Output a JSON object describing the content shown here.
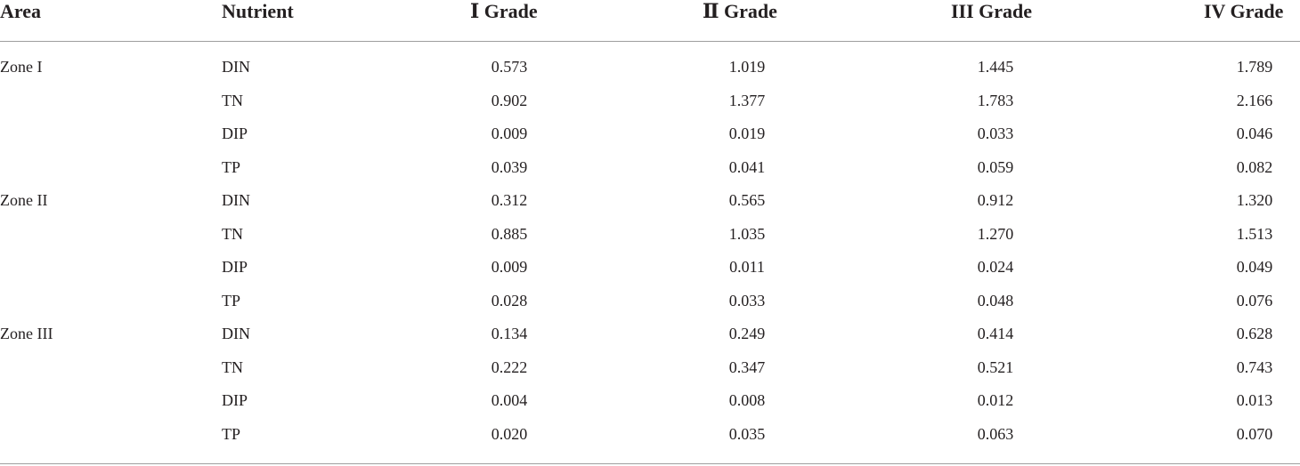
{
  "table": {
    "headers": [
      "Area",
      "Nutrient",
      "Ⅰ Grade",
      "Ⅱ Grade",
      "III Grade",
      "IV Grade"
    ],
    "rows": [
      {
        "area": "Zone I",
        "nutrient": "DIN",
        "g1": "0.573",
        "g2": "1.019",
        "g3": "1.445",
        "g4": "1.789"
      },
      {
        "area": "",
        "nutrient": "TN",
        "g1": "0.902",
        "g2": "1.377",
        "g3": "1.783",
        "g4": "2.166"
      },
      {
        "area": "",
        "nutrient": "DIP",
        "g1": "0.009",
        "g2": "0.019",
        "g3": "0.033",
        "g4": "0.046"
      },
      {
        "area": "",
        "nutrient": "TP",
        "g1": "0.039",
        "g2": "0.041",
        "g3": "0.059",
        "g4": "0.082"
      },
      {
        "area": "Zone II",
        "nutrient": "DIN",
        "g1": "0.312",
        "g2": "0.565",
        "g3": "0.912",
        "g4": "1.320"
      },
      {
        "area": "",
        "nutrient": "TN",
        "g1": "0.885",
        "g2": "1.035",
        "g3": "1.270",
        "g4": "1.513"
      },
      {
        "area": "",
        "nutrient": "DIP",
        "g1": "0.009",
        "g2": "0.011",
        "g3": "0.024",
        "g4": "0.049"
      },
      {
        "area": "",
        "nutrient": "TP",
        "g1": "0.028",
        "g2": "0.033",
        "g3": "0.048",
        "g4": "0.076"
      },
      {
        "area": "Zone III",
        "nutrient": "DIN",
        "g1": "0.134",
        "g2": "0.249",
        "g3": "0.414",
        "g4": "0.628"
      },
      {
        "area": "",
        "nutrient": "TN",
        "g1": "0.222",
        "g2": "0.347",
        "g3": "0.521",
        "g4": "0.743"
      },
      {
        "area": "",
        "nutrient": "DIP",
        "g1": "0.004",
        "g2": "0.008",
        "g3": "0.012",
        "g4": "0.013"
      },
      {
        "area": "",
        "nutrient": "TP",
        "g1": "0.020",
        "g2": "0.035",
        "g3": "0.063",
        "g4": "0.070"
      }
    ]
  }
}
